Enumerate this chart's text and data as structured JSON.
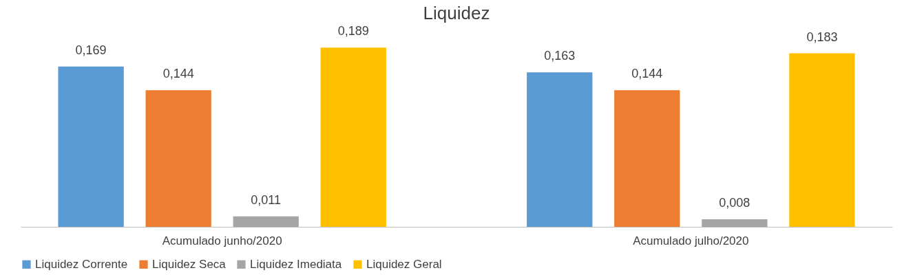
{
  "chart_data": {
    "type": "bar",
    "title": "Liquidez",
    "categories": [
      "Acumulado junho/2020",
      "Acumulado julho/2020"
    ],
    "series": [
      {
        "name": "Liquidez Corrente",
        "color": "#5b9bd5",
        "values": [
          0.169,
          0.163
        ],
        "value_labels": [
          "0,169",
          "0,163"
        ]
      },
      {
        "name": "Liquidez Seca",
        "color": "#ed7d31",
        "values": [
          0.144,
          0.144
        ],
        "value_labels": [
          "0,144",
          "0,144"
        ]
      },
      {
        "name": "Liquidez Imediata",
        "color": "#a5a5a5",
        "values": [
          0.011,
          0.008
        ],
        "value_labels": [
          "0,011",
          "0,008"
        ]
      },
      {
        "name": "Liquidez Geral",
        "color": "#ffc000",
        "values": [
          0.189,
          0.183
        ],
        "value_labels": [
          "0,189",
          "0,183"
        ]
      }
    ],
    "legend": "bottom",
    "grid": false
  }
}
